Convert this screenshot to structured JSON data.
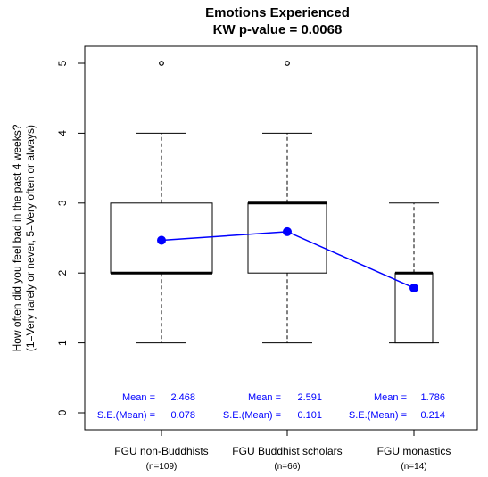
{
  "chart_data": {
    "type": "box",
    "title": "Emotions Experienced",
    "subtitle": "KW p-value = 0.0068",
    "ylabel_line1": "How often did you feel bad in the past 4 weeks?",
    "ylabel_line2": "(1=Very rarely or never, 5=Very often or always)",
    "ylim": [
      0,
      5
    ],
    "yticks": [
      "0",
      "1",
      "2",
      "3",
      "4",
      "5"
    ],
    "categories": [
      "FGU non-Buddhists",
      "FGU Buddhist scholars",
      "FGU monastics"
    ],
    "n_labels": [
      "(n=109)",
      "(n=66)",
      "(n=14)"
    ],
    "boxes": [
      {
        "whisker_low": 1,
        "q1": 2,
        "median": 2,
        "q3": 3,
        "whisker_high": 4,
        "outliers": [
          5
        ]
      },
      {
        "whisker_low": 1,
        "q1": 2,
        "median": 3,
        "q3": 3,
        "whisker_high": 4,
        "outliers": [
          5
        ]
      },
      {
        "whisker_low": 1,
        "q1": 1,
        "median": 2,
        "q3": 2,
        "whisker_high": 3,
        "outliers": []
      }
    ],
    "means": [
      2.468,
      2.591,
      1.786
    ],
    "mean_text": [
      "2.468",
      "2.591",
      "1.786"
    ],
    "se_text": [
      "0.078",
      "0.101",
      "0.214"
    ],
    "mean_label": "Mean =",
    "se_label": "S.E.(Mean) =",
    "mean_color": "#0000ff",
    "grid": false,
    "legend": "none"
  }
}
